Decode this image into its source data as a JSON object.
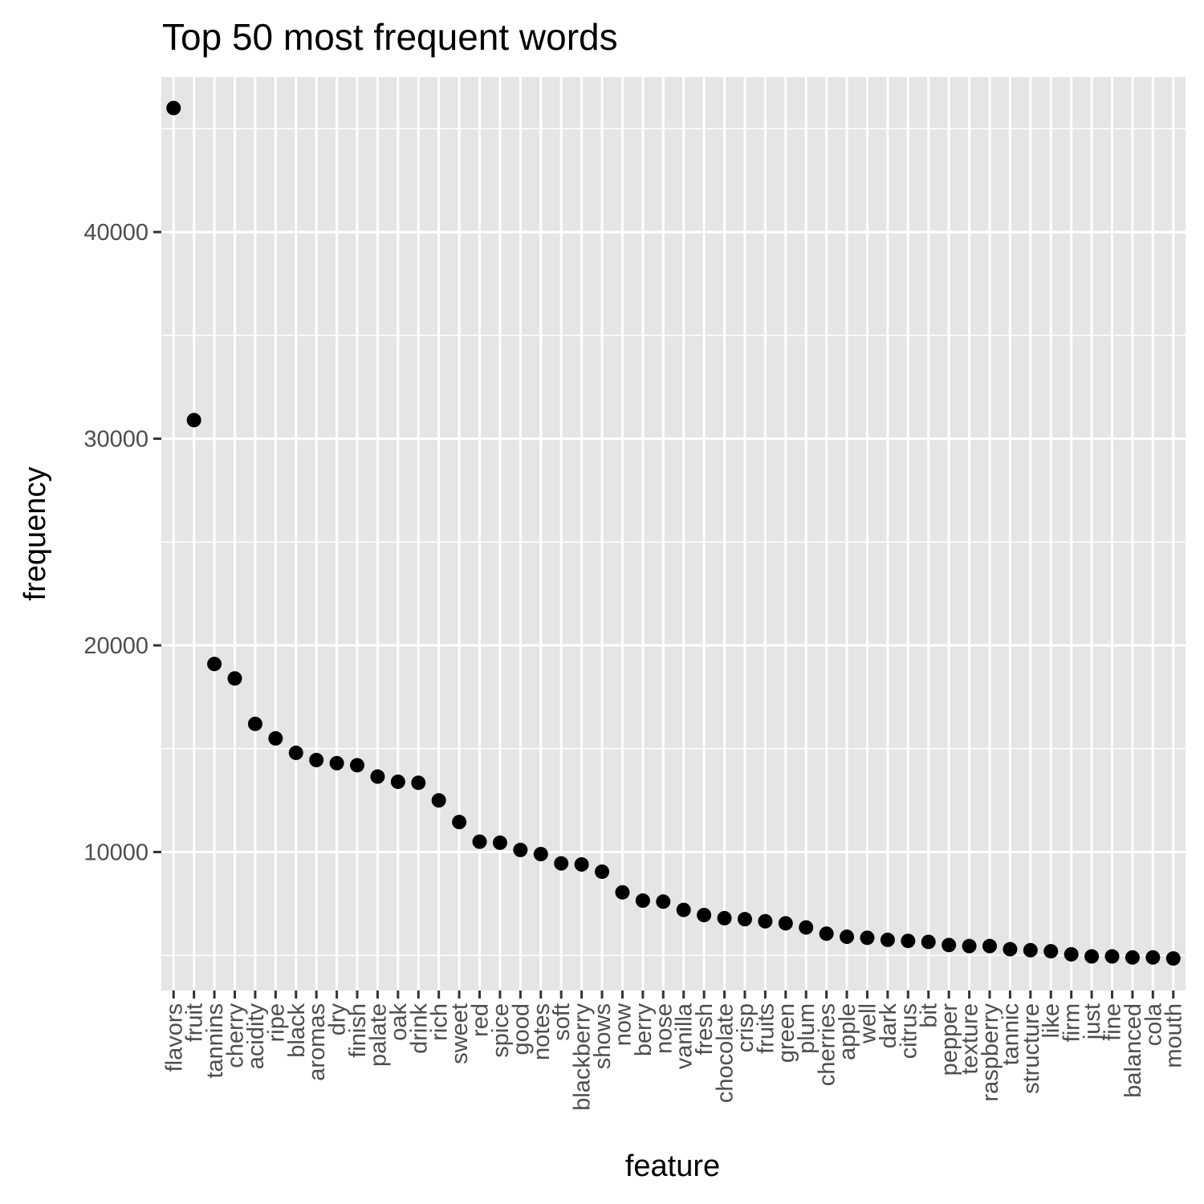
{
  "chart_data": {
    "type": "scatter",
    "title": "Top 50 most frequent words",
    "xlabel": "feature",
    "ylabel": "frequency",
    "ylim": [
      3300,
      47500
    ],
    "yticks": [
      10000,
      20000,
      30000,
      40000
    ],
    "grid": true,
    "panel_background": "#e5e5e5",
    "grid_color": "#ffffff",
    "point_color": "#000000",
    "categories": [
      "flavors",
      "fruit",
      "tannins",
      "cherry",
      "acidity",
      "ripe",
      "black",
      "aromas",
      "dry",
      "finish",
      "palate",
      "oak",
      "drink",
      "rich",
      "sweet",
      "red",
      "spice",
      "good",
      "notes",
      "soft",
      "blackberry",
      "shows",
      "now",
      "berry",
      "nose",
      "vanilla",
      "fresh",
      "chocolate",
      "crisp",
      "fruits",
      "green",
      "plum",
      "cherries",
      "apple",
      "well",
      "dark",
      "citrus",
      "bit",
      "pepper",
      "texture",
      "raspberry",
      "tannic",
      "structure",
      "like",
      "firm",
      "just",
      "fine",
      "balanced",
      "cola",
      "mouth"
    ],
    "values": [
      46000,
      30900,
      19100,
      18400,
      16200,
      15500,
      14800,
      14450,
      14300,
      14200,
      13650,
      13400,
      13350,
      12500,
      11450,
      10500,
      10450,
      10100,
      9900,
      9450,
      9400,
      9050,
      8050,
      7650,
      7600,
      7200,
      6950,
      6800,
      6750,
      6650,
      6550,
      6350,
      6050,
      5900,
      5850,
      5750,
      5700,
      5650,
      5500,
      5450,
      5450,
      5300,
      5250,
      5200,
      5050,
      4950,
      4950,
      4900,
      4900,
      4850
    ]
  }
}
